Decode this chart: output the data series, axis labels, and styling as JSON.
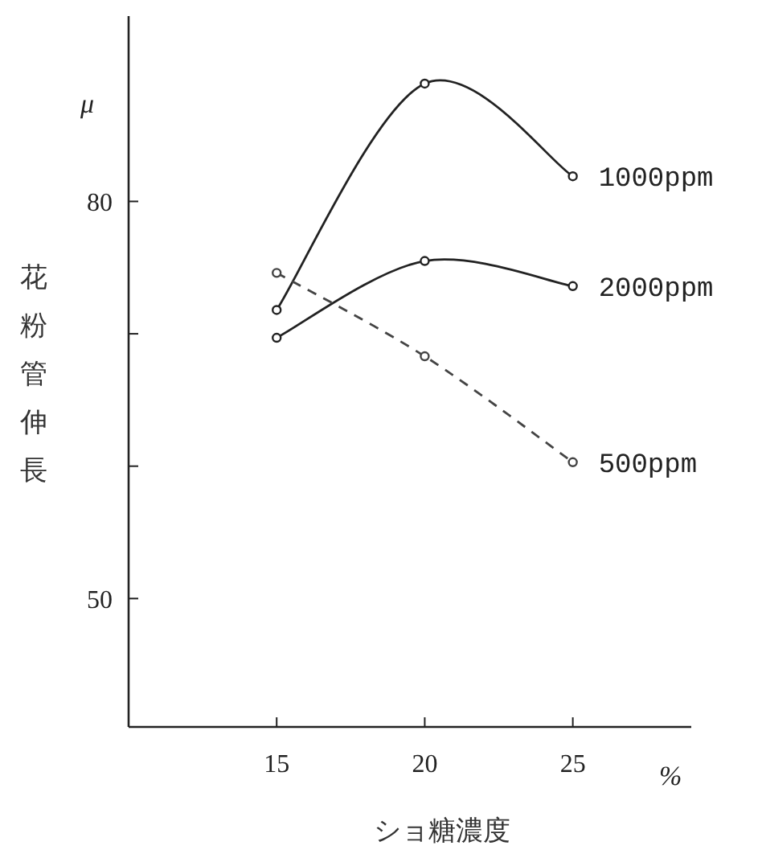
{
  "chart_data": {
    "type": "line",
    "ylabel": "花粉管伸長",
    "xlabel": "ショ糖濃度",
    "annotations": [
      "μ",
      "%"
    ],
    "x": [
      15,
      20,
      25
    ],
    "series": [
      {
        "name": "1000ppm",
        "color": "#222222",
        "values": [
          71.8,
          88.9,
          81.9
        ],
        "line_style": "solid"
      },
      {
        "name": "2000ppm",
        "color": "#222222",
        "values": [
          69.7,
          75.5,
          73.6
        ],
        "line_style": "solid"
      },
      {
        "name": "500ppm",
        "color": "#444444",
        "values": [
          74.6,
          68.3,
          60.3
        ],
        "line_style": "dashed"
      }
    ],
    "xlim": [
      10,
      29
    ],
    "ylim": [
      40.3,
      94
    ],
    "xticks": [
      15,
      20,
      25
    ],
    "yticks": [
      {
        "value": 50,
        "label": "50"
      },
      {
        "value": 60,
        "label": null
      },
      {
        "value": 70,
        "label": null
      },
      {
        "value": 80,
        "label": "80"
      }
    ],
    "marker": "circle",
    "grid": false
  }
}
